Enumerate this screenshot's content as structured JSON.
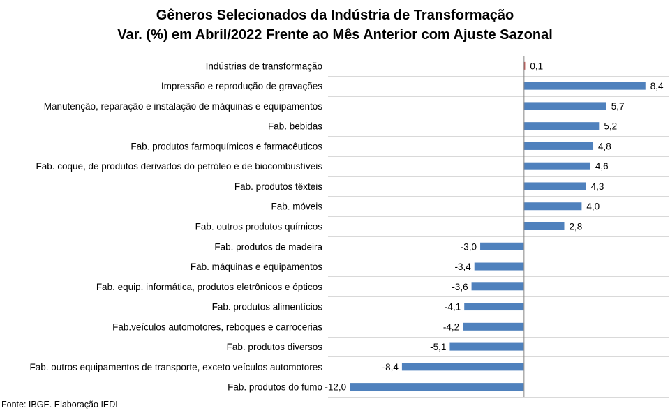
{
  "chart_data": {
    "type": "bar",
    "orientation": "horizontal",
    "title": "Gêneros Selecionados da Indústria de Transformação",
    "subtitle": "Var. (%) em Abril/2022 Frente ao Mês Anterior com Ajuste Sazonal",
    "categories": [
      "Indústrias de transformação",
      "Impressão e reprodução de gravações",
      "Manutenção, reparação e instalação de máquinas e equipamentos",
      "Fab. bebidas",
      "Fab. produtos farmoquímicos e farmacêuticos",
      "Fab. coque, de produtos derivados do petróleo e de biocombustíveis",
      "Fab. produtos têxteis",
      "Fab. móveis",
      "Fab. outros produtos químicos",
      "Fab. produtos de madeira",
      "Fab. máquinas e equipamentos",
      "Fab. equip. informática, produtos eletrônicos e ópticos",
      "Fab. produtos alimentícios",
      "Fab.veículos automotores, reboques e carrocerias",
      "Fab. produtos diversos",
      "Fab. outros equipamentos de transporte, exceto veículos automotores",
      "Fab. produtos do fumo"
    ],
    "values": [
      0.1,
      8.4,
      5.7,
      5.2,
      4.8,
      4.6,
      4.3,
      4.0,
      2.8,
      -3.0,
      -3.4,
      -3.6,
      -4.1,
      -4.2,
      -5.1,
      -8.4,
      -12.0
    ],
    "value_labels": [
      "0,1",
      "8,4",
      "5,7",
      "5,2",
      "4,8",
      "4,6",
      "4,3",
      "4,0",
      "2,8",
      "-3,0",
      "-3,4",
      "-3,6",
      "-4,1",
      "-4,2",
      "-5,1",
      "-8,4",
      "-12,0"
    ],
    "highlight_index": 0,
    "xlim": [
      -13.5,
      10.0
    ],
    "grid": true,
    "legend": "none",
    "colors": {
      "bar": "#4f81bd",
      "highlight": "#c0504d",
      "grid": "#d9d9d9",
      "axis": "#868686"
    }
  },
  "footer": {
    "source": "Fonte: IBGE. Elaboração IEDI"
  }
}
